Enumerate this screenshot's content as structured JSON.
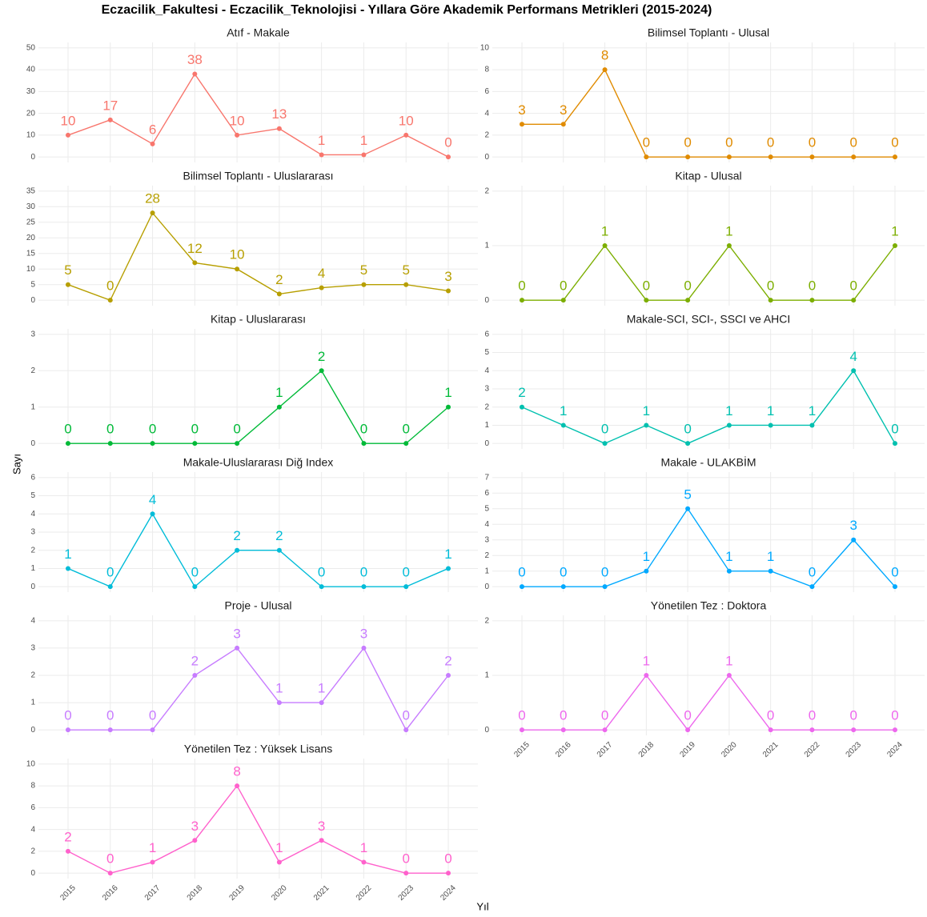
{
  "title": "Eczacilik_Fakultesi  -  Eczacilik_Teknolojisi  - Yıllara Göre Akademik Performans Metrikleri (2015-2024)",
  "x_label": "Yıl",
  "y_label": "Sayı",
  "chart_data": [
    {
      "type": "line",
      "title": "Atıf - Makale",
      "color": "#F8766D",
      "x": [
        2015,
        2016,
        2017,
        2018,
        2019,
        2020,
        2021,
        2022,
        2023,
        2024
      ],
      "values": [
        10,
        17,
        6,
        38,
        10,
        13,
        1,
        1,
        10,
        0
      ],
      "ylim": [
        -2.5,
        52.5
      ],
      "yticks": [
        0,
        10,
        20,
        30,
        40,
        50
      ]
    },
    {
      "type": "line",
      "title": "Bilimsel Toplantı - Ulusal",
      "color": "#E08B00",
      "x": [
        2015,
        2016,
        2017,
        2018,
        2019,
        2020,
        2021,
        2022,
        2023,
        2024
      ],
      "values": [
        3,
        3,
        8,
        0,
        0,
        0,
        0,
        0,
        0,
        0
      ],
      "ylim": [
        -0.5,
        10.5
      ],
      "yticks": [
        0,
        2,
        4,
        6,
        8,
        10
      ]
    },
    {
      "type": "line",
      "title": "Bilimsel Toplantı - Uluslararası",
      "color": "#B79F00",
      "x": [
        2015,
        2016,
        2017,
        2018,
        2019,
        2020,
        2021,
        2022,
        2023,
        2024
      ],
      "values": [
        5,
        0,
        28,
        12,
        10,
        2,
        4,
        5,
        5,
        3
      ],
      "ylim": [
        -1.75,
        36.75
      ],
      "yticks": [
        0,
        5,
        10,
        15,
        20,
        25,
        30,
        35
      ]
    },
    {
      "type": "line",
      "title": "Kitap - Ulusal",
      "color": "#7CAE00",
      "x": [
        2015,
        2016,
        2017,
        2018,
        2019,
        2020,
        2021,
        2022,
        2023,
        2024
      ],
      "values": [
        0,
        0,
        1,
        0,
        0,
        1,
        0,
        0,
        0,
        1
      ],
      "ylim": [
        -0.1,
        2.1
      ],
      "yticks": [
        0,
        1,
        2
      ]
    },
    {
      "type": "line",
      "title": "Kitap - Uluslararası",
      "color": "#00BA38",
      "x": [
        2015,
        2016,
        2017,
        2018,
        2019,
        2020,
        2021,
        2022,
        2023,
        2024
      ],
      "values": [
        0,
        0,
        0,
        0,
        0,
        1,
        2,
        0,
        0,
        1
      ],
      "ylim": [
        -0.15,
        3.15
      ],
      "yticks": [
        0,
        1,
        2,
        3
      ]
    },
    {
      "type": "line",
      "title": "Makale-SCI, SCI-, SSCI ve AHCI",
      "color": "#00C0AF",
      "x": [
        2015,
        2016,
        2017,
        2018,
        2019,
        2020,
        2021,
        2022,
        2023,
        2024
      ],
      "values": [
        2,
        1,
        0,
        1,
        0,
        1,
        1,
        1,
        4,
        0
      ],
      "ylim": [
        -0.3,
        6.3
      ],
      "yticks": [
        0,
        1,
        2,
        3,
        4,
        5,
        6
      ]
    },
    {
      "type": "line",
      "title": "Makale-Uluslararası Diğ Index",
      "color": "#00BCD8",
      "x": [
        2015,
        2016,
        2017,
        2018,
        2019,
        2020,
        2021,
        2022,
        2023,
        2024
      ],
      "values": [
        1,
        0,
        4,
        0,
        2,
        2,
        0,
        0,
        0,
        1
      ],
      "ylim": [
        -0.3,
        6.3
      ],
      "yticks": [
        0,
        1,
        2,
        3,
        4,
        5,
        6
      ]
    },
    {
      "type": "line",
      "title": "Makale - ULAKBİM",
      "color": "#00A9FF",
      "x": [
        2015,
        2016,
        2017,
        2018,
        2019,
        2020,
        2021,
        2022,
        2023,
        2024
      ],
      "values": [
        0,
        0,
        0,
        1,
        5,
        1,
        1,
        0,
        3,
        0
      ],
      "ylim": [
        -0.35,
        7.35
      ],
      "yticks": [
        0,
        1,
        2,
        3,
        4,
        5,
        6,
        7
      ]
    },
    {
      "type": "line",
      "title": "Proje - Ulusal",
      "color": "#C77CFF",
      "x": [
        2015,
        2016,
        2017,
        2018,
        2019,
        2020,
        2021,
        2022,
        2023,
        2024
      ],
      "values": [
        0,
        0,
        0,
        2,
        3,
        1,
        1,
        3,
        0,
        2
      ],
      "ylim": [
        -0.2,
        4.2
      ],
      "yticks": [
        0,
        1,
        2,
        3,
        4
      ]
    },
    {
      "type": "line",
      "title": "Yönetilen Tez : Doktora",
      "color": "#ED68ED",
      "x": [
        2015,
        2016,
        2017,
        2018,
        2019,
        2020,
        2021,
        2022,
        2023,
        2024
      ],
      "values": [
        0,
        0,
        0,
        1,
        0,
        1,
        0,
        0,
        0,
        0
      ],
      "ylim": [
        -0.1,
        2.1
      ],
      "yticks": [
        0,
        1,
        2
      ]
    },
    {
      "type": "line",
      "title": "Yönetilen Tez : Yüksek Lisans",
      "color": "#FF61CC",
      "x": [
        2015,
        2016,
        2017,
        2018,
        2019,
        2020,
        2021,
        2022,
        2023,
        2024
      ],
      "values": [
        2,
        0,
        1,
        3,
        8,
        1,
        3,
        1,
        0,
        0
      ],
      "ylim": [
        -0.5,
        10.5
      ],
      "yticks": [
        0,
        2,
        4,
        6,
        8,
        10
      ]
    }
  ]
}
